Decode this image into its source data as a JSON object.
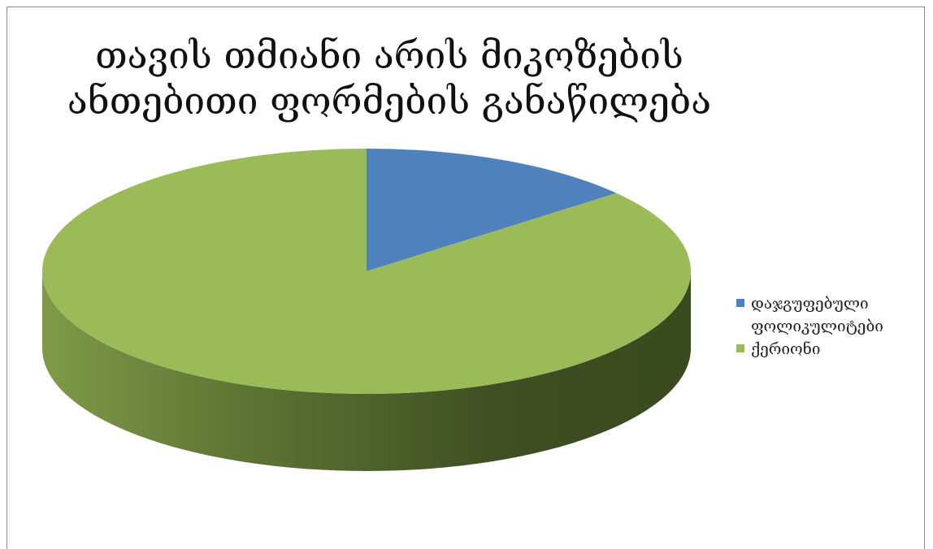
{
  "chart_data": {
    "type": "pie",
    "style": "3d",
    "title_lines": [
      "თავის თმიანი არის მიკოზების",
      "ანთებითი ფორმების განაწილება"
    ],
    "series": [
      {
        "name": "დაჯგუფებული ფოლიკულიტები",
        "value": 14,
        "color": "#4F81BD"
      },
      {
        "name": "ქერიონი",
        "value": 86,
        "color": "#9BBB59"
      }
    ],
    "legend": {
      "position": "right",
      "lines": [
        [
          "დაჯგუფებული",
          "ფოლიკულიტები"
        ],
        [
          "ქერიონი"
        ]
      ]
    }
  }
}
